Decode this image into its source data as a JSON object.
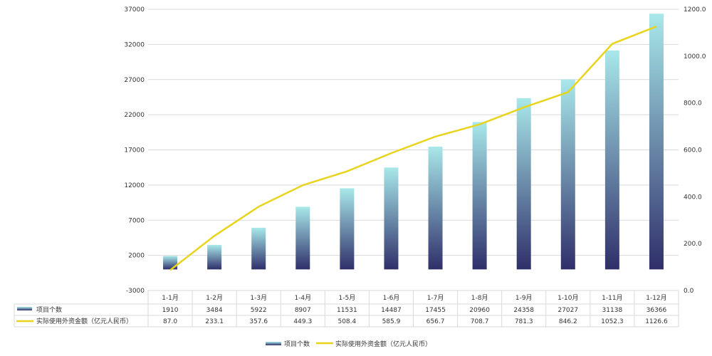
{
  "chart_data": {
    "type": "bar+line",
    "categories": [
      "1-1月",
      "1-2月",
      "1-3月",
      "1-4月",
      "1-5月",
      "1-6月",
      "1-7月",
      "1-8月",
      "1-9月",
      "1-10月",
      "1-11月",
      "1-12月"
    ],
    "series": [
      {
        "name": "项目个数",
        "type": "bar",
        "axis": "left",
        "values": [
          1910,
          3484,
          5922,
          8907,
          11531,
          14487,
          17455,
          20960,
          24358,
          27027,
          31138,
          36366
        ],
        "display": [
          "1910",
          "3484",
          "5922",
          "8907",
          "11531",
          "14487",
          "17455",
          "20960",
          "24358",
          "27027",
          "31138",
          "36366"
        ],
        "color_top": "#a8e8ea",
        "color_bottom": "#2f2f6a"
      },
      {
        "name": "实际使用外资金额（亿元人民币）",
        "type": "line",
        "axis": "right",
        "values": [
          87.0,
          233.1,
          357.6,
          449.3,
          508.4,
          585.9,
          656.7,
          708.7,
          781.3,
          846.2,
          1052.3,
          1126.6
        ],
        "display": [
          "87.0",
          "233.1",
          "357.6",
          "449.3",
          "508.4",
          "585.9",
          "656.7",
          "708.7",
          "781.3",
          "846.2",
          "1052.3",
          "1126.6"
        ],
        "color": "#e8d41c"
      }
    ],
    "left_axis": {
      "range": [
        -3000,
        37000
      ],
      "ticks": [
        "37000",
        "32000",
        "27000",
        "22000",
        "17000",
        "12000",
        "7000",
        "2000",
        "-3000"
      ]
    },
    "right_axis": {
      "range": [
        0,
        1200
      ],
      "ticks": [
        "1200.0",
        "1000.0",
        "800.0",
        "600.0",
        "400.0",
        "200.0",
        "0.0"
      ]
    },
    "grid": true,
    "data_table": true,
    "legend": "bottom-center"
  }
}
